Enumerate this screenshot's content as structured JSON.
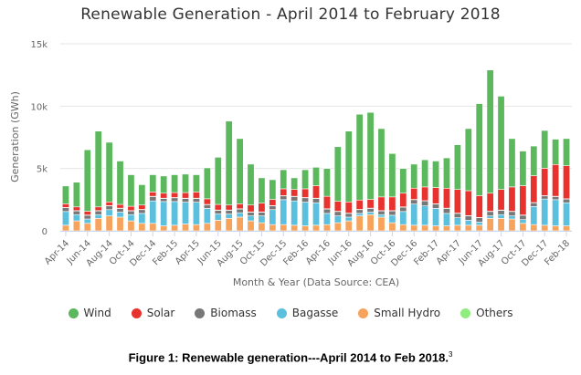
{
  "chart_data": {
    "type": "bar",
    "stacked": true,
    "title": "Renewable Generation - April 2014 to February 2018",
    "xlabel": "Month & Year (Data Source: CEA)",
    "ylabel": "Generation (GWh)",
    "ylim": [
      0,
      15000
    ],
    "yticks": [
      0,
      5000,
      10000,
      15000
    ],
    "ytick_labels": [
      "0",
      "5k",
      "10k",
      "15k"
    ],
    "grid": true,
    "legend_position": "bottom",
    "categories": [
      "Apr-14",
      "May-14",
      "Jun-14",
      "Jul-14",
      "Aug-14",
      "Sep-14",
      "Oct-14",
      "Nov-14",
      "Dec-14",
      "Jan-15",
      "Feb-15",
      "Mar-15",
      "Apr-15",
      "May-15",
      "Jun-15",
      "Jul-15",
      "Aug-15",
      "Sep-15",
      "Oct-15",
      "Nov-15",
      "Dec-15",
      "Jan-16",
      "Feb-16",
      "Mar-16",
      "Apr-16",
      "May-16",
      "Jun-16",
      "Jul-16",
      "Aug-16",
      "Sep-16",
      "Oct-16",
      "Nov-16",
      "Dec-16",
      "Jan-17",
      "Feb-17",
      "Mar-17",
      "Apr-17",
      "May-17",
      "Jun-17",
      "Jul-17",
      "Aug-17",
      "Sep-17",
      "Oct-17",
      "Nov-17",
      "Dec-17",
      "Jan-18",
      "Feb-18"
    ],
    "xtick_labels": [
      "Apr-14",
      "Jun-14",
      "Aug-14",
      "Oct-14",
      "Dec-14",
      "Feb-15",
      "Apr-15",
      "Jun-15",
      "Aug-15",
      "Oct-15",
      "Dec-15",
      "Feb-16",
      "Apr-16",
      "Jun-16",
      "Aug-16",
      "Oct-16",
      "Dec-16",
      "Feb-17",
      "Apr-17",
      "Jun-17",
      "Aug-17",
      "Oct-17",
      "Dec-17",
      "Feb-18"
    ],
    "series": [
      {
        "name": "Small Hydro",
        "color": "#f7a35c",
        "values": [
          450,
          800,
          600,
          1000,
          1200,
          1100,
          800,
          600,
          600,
          400,
          450,
          550,
          500,
          600,
          850,
          1000,
          1100,
          800,
          650,
          500,
          500,
          450,
          400,
          450,
          500,
          650,
          800,
          1200,
          1300,
          1100,
          650,
          500,
          450,
          450,
          400,
          400,
          450,
          450,
          450,
          1000,
          1000,
          950,
          600,
          500,
          450,
          400,
          400
        ]
      },
      {
        "name": "Bagasse",
        "color": "#5bc0de",
        "values": [
          1100,
          500,
          350,
          300,
          500,
          400,
          500,
          800,
          1800,
          1950,
          1900,
          1750,
          1800,
          1200,
          500,
          350,
          350,
          400,
          550,
          1200,
          2000,
          1950,
          1900,
          1800,
          900,
          550,
          300,
          200,
          200,
          200,
          600,
          1050,
          1700,
          1550,
          1400,
          1000,
          600,
          400,
          250,
          200,
          300,
          250,
          300,
          1450,
          2100,
          2100,
          1850
        ]
      },
      {
        "name": "Biomass",
        "color": "#777777",
        "values": [
          300,
          300,
          300,
          300,
          300,
          300,
          300,
          300,
          350,
          250,
          300,
          300,
          300,
          300,
          300,
          300,
          300,
          300,
          300,
          300,
          300,
          350,
          350,
          350,
          350,
          350,
          300,
          300,
          300,
          300,
          350,
          350,
          350,
          400,
          350,
          400,
          350,
          350,
          350,
          350,
          350,
          350,
          350,
          300,
          250,
          250,
          300
        ]
      },
      {
        "name": "Others",
        "color": "#90ed7d",
        "values": [
          20,
          20,
          20,
          20,
          20,
          20,
          20,
          20,
          20,
          20,
          20,
          20,
          20,
          20,
          20,
          20,
          20,
          20,
          20,
          20,
          20,
          20,
          20,
          20,
          20,
          20,
          20,
          20,
          20,
          20,
          20,
          20,
          20,
          20,
          20,
          20,
          20,
          20,
          20,
          20,
          20,
          20,
          20,
          20,
          20,
          20,
          20
        ]
      },
      {
        "name": "Solar",
        "color": "#e8322d",
        "values": [
          300,
          300,
          300,
          300,
          300,
          300,
          350,
          350,
          350,
          400,
          400,
          450,
          500,
          450,
          450,
          400,
          400,
          550,
          700,
          500,
          550,
          550,
          700,
          1000,
          1000,
          800,
          900,
          750,
          700,
          1100,
          1100,
          1100,
          900,
          1100,
          1300,
          1600,
          1900,
          2000,
          1750,
          1450,
          1650,
          1950,
          2350,
          2150,
          2200,
          2550,
          2650
        ]
      },
      {
        "name": "Wind",
        "color": "#5cb85c",
        "values": [
          1430,
          1980,
          4930,
          6080,
          4780,
          3480,
          2530,
          1630,
          1380,
          1380,
          1430,
          1480,
          1380,
          2480,
          3780,
          6730,
          5230,
          3280,
          2030,
          1580,
          1530,
          930,
          1530,
          1480,
          2230,
          4380,
          5680,
          6880,
          6980,
          5480,
          3480,
          1980,
          1930,
          2180,
          2130,
          2430,
          3580,
          4980,
          7380,
          9880,
          7480,
          3880,
          2780,
          2380,
          3030,
          2030,
          2180
        ]
      }
    ]
  },
  "legend": [
    {
      "name": "Wind",
      "color": "#5cb85c"
    },
    {
      "name": "Solar",
      "color": "#e8322d"
    },
    {
      "name": "Biomass",
      "color": "#777777"
    },
    {
      "name": "Bagasse",
      "color": "#5bc0de"
    },
    {
      "name": "Small Hydro",
      "color": "#f7a35c"
    },
    {
      "name": "Others",
      "color": "#90ed7d"
    }
  ],
  "caption": {
    "text": "Figure 1: Renewable generation---April 2014 to Feb 2018.",
    "footnote": "3"
  }
}
